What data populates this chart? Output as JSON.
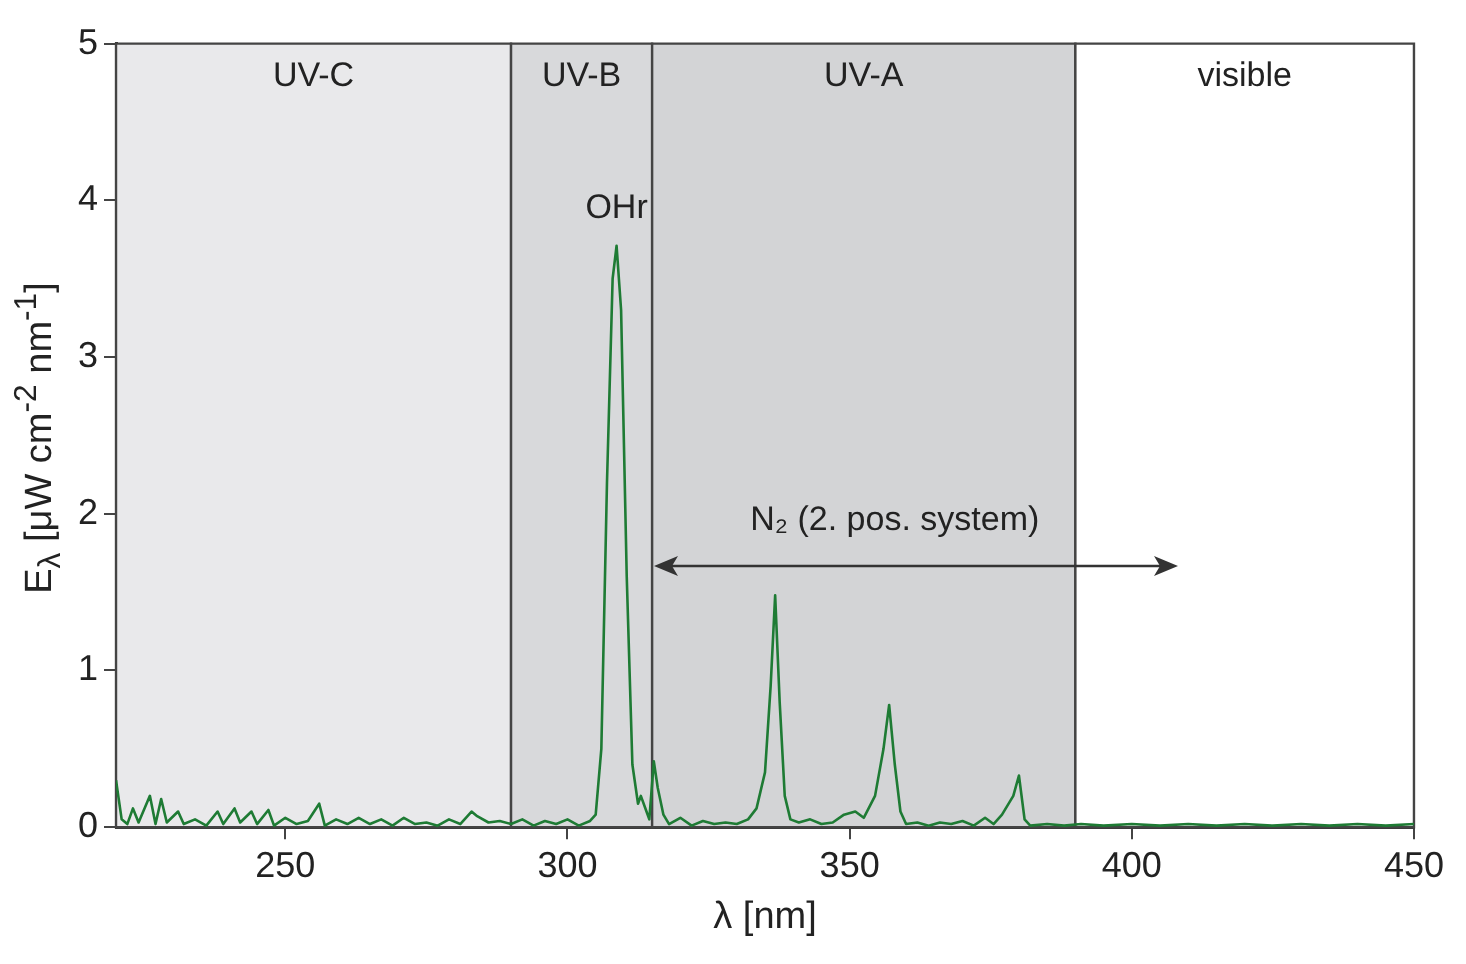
{
  "chart_data": {
    "type": "line",
    "xlabel": "λ [nm]",
    "ylabel": "E$_{λ}$ [μW cm$^{-2}$ nm$^{-1}$]",
    "xlim": [
      220,
      450
    ],
    "xticks": [
      250,
      300,
      350,
      400,
      450
    ],
    "ylim": [
      0,
      5
    ],
    "yticks": [
      0,
      1,
      2,
      3,
      4,
      5
    ],
    "legend": false,
    "marker": "none",
    "line_style": "solid",
    "bands": [
      {
        "axis": "x",
        "from": 220,
        "to": 290,
        "label": "UV-C",
        "color": "#e9e9eb"
      },
      {
        "axis": "x",
        "from": 290,
        "to": 315,
        "label": "UV-B",
        "color": "#d8d9db"
      },
      {
        "axis": "x",
        "from": 315,
        "to": 390,
        "label": "UV-A",
        "color": "#d3d4d6"
      },
      {
        "axis": "x",
        "from": 390,
        "to": 450,
        "label": "visible",
        "color": "#ffffff"
      }
    ],
    "annotations": [
      "OHr",
      "N₂ (2. pos. system)"
    ],
    "series": [
      {
        "color": "#1e7b34",
        "x": [
          220,
          221,
          222,
          223,
          224,
          226,
          227,
          228,
          229,
          231,
          232,
          234,
          236,
          238,
          239,
          241,
          242,
          244,
          245,
          247,
          248,
          250,
          252,
          254,
          256,
          257,
          259,
          261,
          263,
          265,
          267,
          269,
          271,
          273,
          275,
          277,
          279,
          281,
          283,
          284,
          286,
          288,
          290,
          292,
          294,
          296,
          298,
          300,
          302,
          304,
          305,
          306,
          307,
          308,
          308.7,
          309.5,
          310.5,
          311.5,
          312.5,
          313,
          314,
          314.5,
          315.3,
          316,
          317,
          318,
          320,
          322,
          324,
          326,
          328,
          330,
          332,
          333.5,
          335,
          336,
          336.8,
          337.6,
          338.5,
          339.5,
          341,
          343,
          345,
          347,
          349,
          351,
          352.5,
          354.5,
          356,
          357,
          358,
          359,
          360,
          362,
          364,
          366,
          368,
          370,
          372,
          374,
          375.5,
          377,
          379,
          380,
          381,
          382,
          385,
          388,
          391,
          395,
          400,
          405,
          410,
          415,
          420,
          425,
          430,
          435,
          440,
          445,
          450
        ],
        "values": [
          0.3,
          0.05,
          0.02,
          0.12,
          0.03,
          0.2,
          0.02,
          0.18,
          0.03,
          0.1,
          0.02,
          0.05,
          0.01,
          0.1,
          0.02,
          0.12,
          0.03,
          0.1,
          0.02,
          0.11,
          0.01,
          0.06,
          0.02,
          0.04,
          0.15,
          0.01,
          0.05,
          0.02,
          0.06,
          0.02,
          0.05,
          0.01,
          0.06,
          0.02,
          0.03,
          0.01,
          0.05,
          0.02,
          0.1,
          0.07,
          0.03,
          0.04,
          0.02,
          0.05,
          0.01,
          0.04,
          0.02,
          0.05,
          0.01,
          0.04,
          0.08,
          0.5,
          2.2,
          3.5,
          3.71,
          3.3,
          1.6,
          0.4,
          0.15,
          0.2,
          0.1,
          0.05,
          0.42,
          0.25,
          0.08,
          0.02,
          0.06,
          0.01,
          0.04,
          0.02,
          0.03,
          0.02,
          0.05,
          0.12,
          0.35,
          0.9,
          1.48,
          0.8,
          0.2,
          0.05,
          0.03,
          0.05,
          0.02,
          0.03,
          0.08,
          0.1,
          0.06,
          0.2,
          0.5,
          0.78,
          0.4,
          0.1,
          0.02,
          0.03,
          0.01,
          0.03,
          0.02,
          0.04,
          0.01,
          0.06,
          0.02,
          0.08,
          0.2,
          0.33,
          0.05,
          0.01,
          0.02,
          0.01,
          0.02,
          0.01,
          0.02,
          0.01,
          0.02,
          0.01,
          0.02,
          0.01,
          0.02,
          0.01,
          0.02,
          0.01,
          0.02
        ]
      }
    ]
  }
}
